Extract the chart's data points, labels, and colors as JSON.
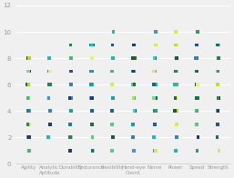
{
  "categories": [
    "Agility",
    "Analytic\nAptitude",
    "Durability",
    "Endurance",
    "Flexibility",
    "Hand-eye\nCoord.",
    "Nerve",
    "Power",
    "Speed",
    "Strength"
  ],
  "ylim": [
    0,
    12
  ],
  "yticks": [
    0,
    2,
    4,
    6,
    8,
    10,
    12
  ],
  "background_color": "#f0f0f0",
  "dot_size": 7,
  "cat_data": {
    "Agility": [
      1,
      1,
      2,
      2,
      3,
      3,
      3,
      4,
      4,
      4,
      5,
      5,
      5,
      6,
      6,
      6,
      7,
      7,
      7,
      8,
      8
    ],
    "Analytic\nAptitude": [
      2,
      3,
      4,
      4,
      5,
      5,
      6,
      6,
      6,
      7,
      7,
      7,
      8
    ],
    "Durability": [
      1,
      2,
      2,
      3,
      4,
      4,
      5,
      5,
      6,
      6,
      7,
      7,
      7,
      8,
      8,
      8,
      9
    ],
    "Endurance": [
      1,
      1,
      2,
      3,
      3,
      4,
      4,
      5,
      5,
      6,
      6,
      6,
      7,
      7,
      7,
      8,
      8,
      8,
      9,
      9,
      9,
      9
    ],
    "Flexibility": [
      1,
      2,
      3,
      3,
      4,
      5,
      5,
      6,
      6,
      7,
      7,
      7,
      8,
      8,
      8,
      9,
      10
    ],
    "Hand-eye\nCoord.": [
      1,
      2,
      3,
      4,
      4,
      5,
      5,
      5,
      6,
      6,
      7,
      7,
      7,
      8,
      8,
      9,
      9
    ],
    "Nerve": [
      1,
      1,
      2,
      3,
      4,
      4,
      5,
      5,
      6,
      6,
      7,
      7,
      7,
      8,
      8,
      8,
      9,
      9,
      10,
      10
    ],
    "Power": [
      1,
      2,
      3,
      4,
      4,
      5,
      5,
      6,
      6,
      7,
      7,
      7,
      8,
      8,
      9,
      9,
      10
    ],
    "Speed": [
      1,
      2,
      3,
      4,
      4,
      5,
      5,
      6,
      6,
      7,
      7,
      8,
      8,
      8,
      9,
      10
    ],
    "Strength": [
      1,
      2,
      3,
      3,
      4,
      4,
      5,
      5,
      6,
      6,
      7,
      7,
      7,
      8,
      8,
      8,
      9,
      9,
      9
    ]
  },
  "dot_colors_palette": [
    "#1a5c3a",
    "#226b45",
    "#2e8050",
    "#3a9960",
    "#4ab870",
    "#60c882",
    "#78d898",
    "#0e7070",
    "#148888",
    "#1aa0a0",
    "#22b8b8",
    "#40cccc",
    "#addc20",
    "#c0e030",
    "#d4ec50",
    "#e4f470",
    "#2060a0",
    "#3a80c0",
    "#5090d0",
    "#1e3f6e",
    "#2a5090"
  ]
}
